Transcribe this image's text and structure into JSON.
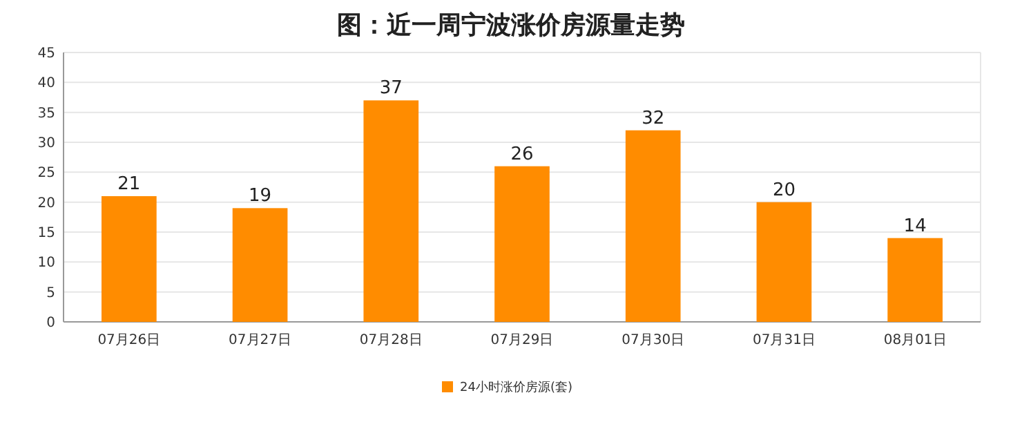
{
  "chart_data": {
    "type": "bar",
    "title": "图：近一周宁波涨价房源量走势",
    "categories": [
      "07月26日",
      "07月27日",
      "07月28日",
      "07月29日",
      "07月30日",
      "07月31日",
      "08月01日"
    ],
    "series": [
      {
        "name": "24小时涨价房源(套)",
        "color": "#ff8c00",
        "values": [
          21,
          19,
          37,
          26,
          32,
          20,
          14
        ]
      }
    ],
    "ylim": [
      0,
      45
    ],
    "yticks": [
      0,
      5,
      10,
      15,
      20,
      25,
      30,
      35,
      40,
      45
    ],
    "grid": "y",
    "data_labels": true,
    "legend": "bottom"
  }
}
